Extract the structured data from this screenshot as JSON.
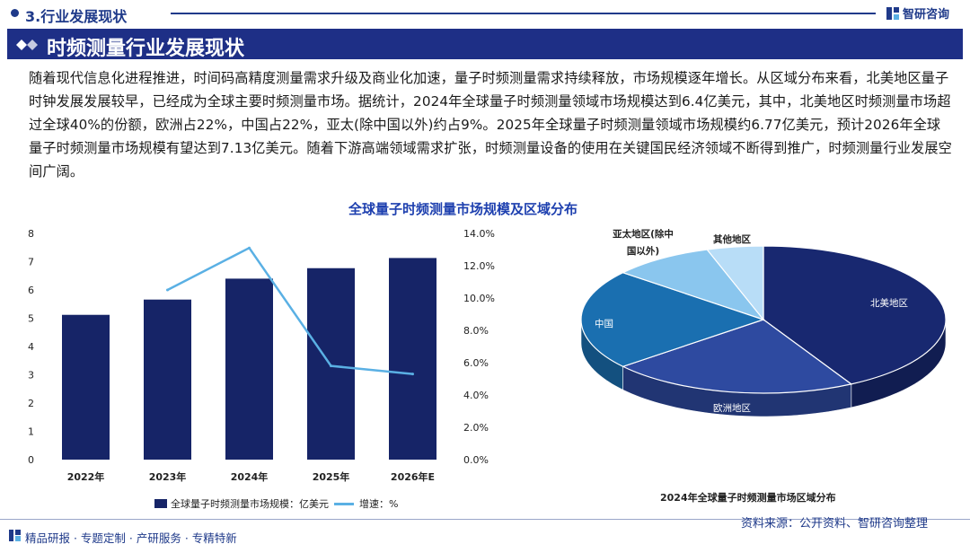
{
  "header": {
    "section_title": "3.行业发展现状",
    "brand": "智研咨询",
    "banner_title": "时频测量行业发展现状"
  },
  "paragraph": "随着现代信息化进程推进，时间码高精度测量需求升级及商业化加速，量子时频测量需求持续释放，市场规模逐年增长。从区域分布来看，北美地区量子时钟发展发展较早，已经成为全球主要时频测量市场。据统计，2024年全球量子时频测量领域市场规模达到6.4亿美元，其中，北美地区时频测量市场超过全球40%的份额，欧洲占22%，中国占22%，亚太(除中国以外)约占9%。2025年全球量子时频测量领域市场规模约6.77亿美元，预计2026年全球量子时频测量市场规模有望达到7.13亿美元。随着下游高端领域需求扩张，时频测量设备的使用在关键国民经济领域不断得到推广，时频测量行业发展空间广阔。",
  "chart_title": "全球量子时频测量市场规模及区域分布",
  "chart_data": [
    {
      "type": "bar",
      "categories": [
        "2022年",
        "2023年",
        "2024年",
        "2025年",
        "2026年E"
      ],
      "series": [
        {
          "name": "全球量子时频测量市场规模：亿美元",
          "type": "bar",
          "axis": "left",
          "values": [
            5.12,
            5.66,
            6.4,
            6.77,
            7.13
          ]
        },
        {
          "name": "增速：%",
          "type": "line",
          "axis": "right",
          "values": [
            null,
            10.5,
            13.1,
            5.8,
            5.3
          ]
        }
      ],
      "ylim_left": [
        0,
        8
      ],
      "yticks_left": [
        "0",
        "1",
        "2",
        "3",
        "4",
        "5",
        "6",
        "7",
        "8"
      ],
      "ylim_right": [
        0,
        14
      ],
      "yticks_right": [
        "0.0%",
        "2.0%",
        "4.0%",
        "6.0%",
        "8.0%",
        "10.0%",
        "12.0%",
        "14.0%"
      ],
      "legend_position": "bottom",
      "colors": {
        "bar": "#162467",
        "line": "#5ab0e4"
      }
    },
    {
      "type": "pie",
      "title": "2024年全球量子时频测量市场区域分布",
      "labels": [
        "北美地区",
        "欧洲地区",
        "中国",
        "亚太地区(除中国以外)",
        "其他地区"
      ],
      "label_lines": [
        [
          "北美地区"
        ],
        [
          "欧洲地区"
        ],
        [
          "中国"
        ],
        [
          "亚太地区(除中",
          "国以外)"
        ],
        [
          "其他地区"
        ]
      ],
      "values": [
        42,
        22,
        22,
        9,
        5
      ],
      "colors": [
        "#182870",
        "#2e4aa0",
        "#1a6fb0",
        "#8ac6ee",
        "#b8ddf7"
      ],
      "style": "3d"
    }
  ],
  "footer": {
    "source": "资料来源：公开资料、智研咨询整理",
    "tagline": "精品研报 · 专题定制 · 产研服务 · 专精特新"
  }
}
